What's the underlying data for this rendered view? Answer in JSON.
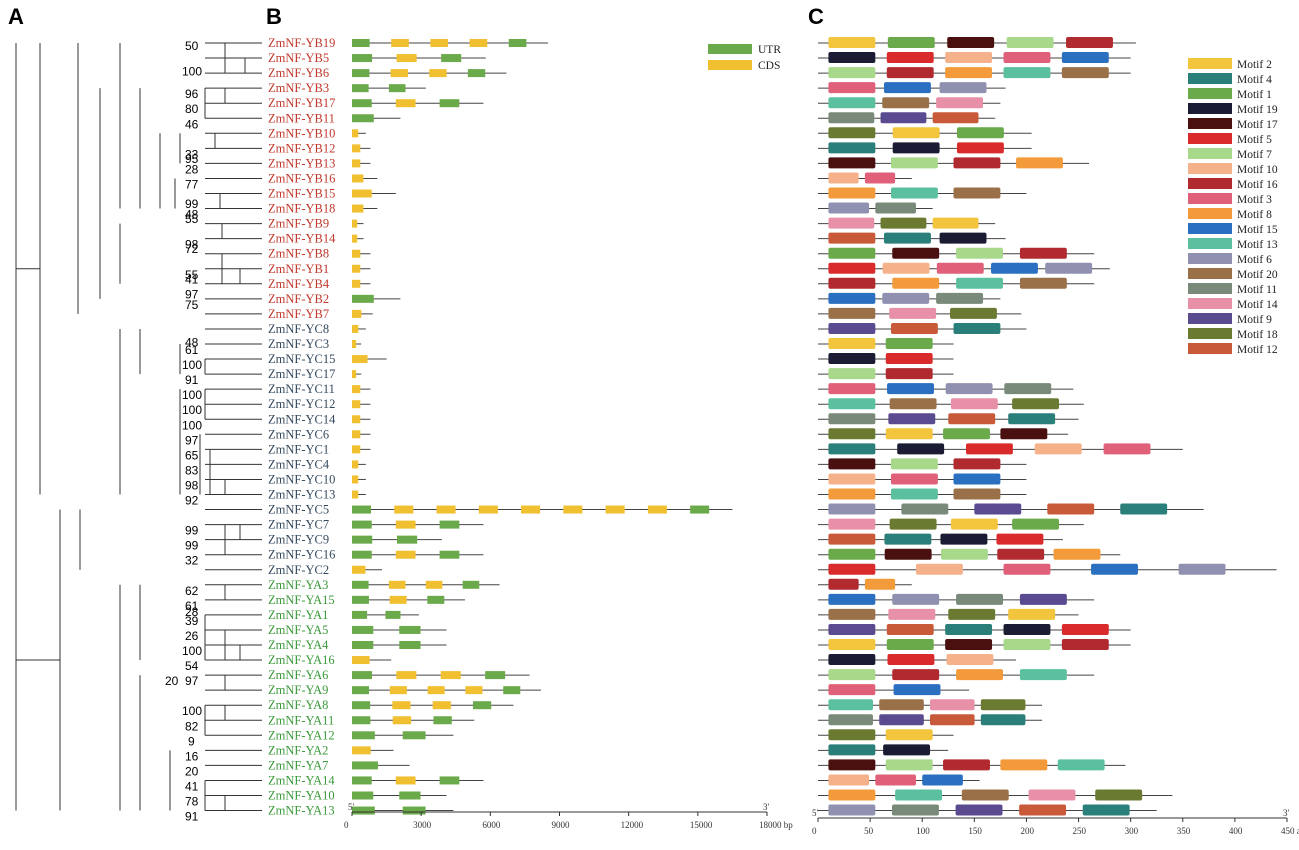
{
  "panels": {
    "a": "A",
    "b": "B",
    "c": "C"
  },
  "colors": {
    "YB": "#c0392b",
    "YC": "#34495e",
    "YA": "#3a9a3a",
    "utr": "#6aaa4a",
    "cds": "#f0c030",
    "line": "#333333"
  },
  "genes": [
    {
      "name": "ZmNF-YB19",
      "family": "YB"
    },
    {
      "name": "ZmNF-YB5",
      "family": "YB"
    },
    {
      "name": "ZmNF-YB6",
      "family": "YB"
    },
    {
      "name": "ZmNF-YB3",
      "family": "YB"
    },
    {
      "name": "ZmNF-YB17",
      "family": "YB"
    },
    {
      "name": "ZmNF-YB11",
      "family": "YB"
    },
    {
      "name": "ZmNF-YB10",
      "family": "YB"
    },
    {
      "name": "ZmNF-YB12",
      "family": "YB"
    },
    {
      "name": "ZmNF-YB13",
      "family": "YB"
    },
    {
      "name": "ZmNF-YB16",
      "family": "YB"
    },
    {
      "name": "ZmNF-YB15",
      "family": "YB"
    },
    {
      "name": "ZmNF-YB18",
      "family": "YB"
    },
    {
      "name": "ZmNF-YB9",
      "family": "YB"
    },
    {
      "name": "ZmNF-YB14",
      "family": "YB"
    },
    {
      "name": "ZmNF-YB8",
      "family": "YB"
    },
    {
      "name": "ZmNF-YB1",
      "family": "YB"
    },
    {
      "name": "ZmNF-YB4",
      "family": "YB"
    },
    {
      "name": "ZmNF-YB2",
      "family": "YB"
    },
    {
      "name": "ZmNF-YB7",
      "family": "YB"
    },
    {
      "name": "ZmNF-YC8",
      "family": "YC"
    },
    {
      "name": "ZmNF-YC3",
      "family": "YC"
    },
    {
      "name": "ZmNF-YC15",
      "family": "YC"
    },
    {
      "name": "ZmNF-YC17",
      "family": "YC"
    },
    {
      "name": "ZmNF-YC11",
      "family": "YC"
    },
    {
      "name": "ZmNF-YC12",
      "family": "YC"
    },
    {
      "name": "ZmNF-YC14",
      "family": "YC"
    },
    {
      "name": "ZmNF-YC6",
      "family": "YC"
    },
    {
      "name": "ZmNF-YC1",
      "family": "YC"
    },
    {
      "name": "ZmNF-YC4",
      "family": "YC"
    },
    {
      "name": "ZmNF-YC10",
      "family": "YC"
    },
    {
      "name": "ZmNF-YC13",
      "family": "YC"
    },
    {
      "name": "ZmNF-YC5",
      "family": "YC"
    },
    {
      "name": "ZmNF-YC7",
      "family": "YC"
    },
    {
      "name": "ZmNF-YC9",
      "family": "YC"
    },
    {
      "name": "ZmNF-YC16",
      "family": "YC"
    },
    {
      "name": "ZmNF-YC2",
      "family": "YC"
    },
    {
      "name": "ZmNF-YA3",
      "family": "YA"
    },
    {
      "name": "ZmNF-YA15",
      "family": "YA"
    },
    {
      "name": "ZmNF-YA1",
      "family": "YA"
    },
    {
      "name": "ZmNF-YA5",
      "family": "YA"
    },
    {
      "name": "ZmNF-YA4",
      "family": "YA"
    },
    {
      "name": "ZmNF-YA16",
      "family": "YA"
    },
    {
      "name": "ZmNF-YA6",
      "family": "YA"
    },
    {
      "name": "ZmNF-YA9",
      "family": "YA"
    },
    {
      "name": "ZmNF-YA8",
      "family": "YA"
    },
    {
      "name": "ZmNF-YA11",
      "family": "YA"
    },
    {
      "name": "ZmNF-YA12",
      "family": "YA"
    },
    {
      "name": "ZmNF-YA2",
      "family": "YA"
    },
    {
      "name": "ZmNF-YA7",
      "family": "YA"
    },
    {
      "name": "ZmNF-YA14",
      "family": "YA"
    },
    {
      "name": "ZmNF-YA10",
      "family": "YA"
    },
    {
      "name": "ZmNF-YA13",
      "family": "YA"
    }
  ],
  "bootstraps": [
    {
      "value": "50",
      "row": 0.2,
      "col": 0
    },
    {
      "value": "100",
      "row": 1.9,
      "col": 0
    },
    {
      "value": "96",
      "row": 3.4,
      "col": 0
    },
    {
      "value": "80",
      "row": 4.4,
      "col": 0
    },
    {
      "value": "46",
      "row": 5.4,
      "col": 0
    },
    {
      "value": "33",
      "row": 7.4,
      "col": 0
    },
    {
      "value": "95",
      "row": 7.7,
      "col": 0
    },
    {
      "value": "77",
      "row": 9.4,
      "col": 0
    },
    {
      "value": "48",
      "row": 11.4,
      "col": 0
    },
    {
      "value": "99",
      "row": 10.7,
      "col": 0
    },
    {
      "value": "55",
      "row": 11.7,
      "col": 0
    },
    {
      "value": "98",
      "row": 13.4,
      "col": 0
    },
    {
      "value": "72",
      "row": 13.7,
      "col": 0
    },
    {
      "value": "55",
      "row": 15.4,
      "col": 0
    },
    {
      "value": "41",
      "row": 15.7,
      "col": 0
    },
    {
      "value": "97",
      "row": 16.7,
      "col": 0
    },
    {
      "value": "75",
      "row": 17.4,
      "col": 0
    },
    {
      "value": "28",
      "row": 8.4,
      "col": 0
    },
    {
      "value": "48",
      "row": 19.9,
      "col": 0
    },
    {
      "value": "61",
      "row": 20.4,
      "col": 0
    },
    {
      "value": "100",
      "row": 21.4,
      "col": 0
    },
    {
      "value": "91",
      "row": 22.4,
      "col": 0
    },
    {
      "value": "100",
      "row": 23.4,
      "col": 0
    },
    {
      "value": "100",
      "row": 24.4,
      "col": 0
    },
    {
      "value": "100",
      "row": 25.4,
      "col": 0
    },
    {
      "value": "97",
      "row": 26.4,
      "col": 0
    },
    {
      "value": "65",
      "row": 27.4,
      "col": 0
    },
    {
      "value": "83",
      "row": 28.4,
      "col": 0
    },
    {
      "value": "98",
      "row": 29.4,
      "col": 0
    },
    {
      "value": "92",
      "row": 30.4,
      "col": 0
    },
    {
      "value": "99",
      "row": 32.4,
      "col": 0
    },
    {
      "value": "99",
      "row": 33.4,
      "col": 0
    },
    {
      "value": "32",
      "row": 34.4,
      "col": 0
    },
    {
      "value": "62",
      "row": 36.4,
      "col": 0
    },
    {
      "value": "61",
      "row": 37.4,
      "col": 0
    },
    {
      "value": "28",
      "row": 37.8,
      "col": 0
    },
    {
      "value": "39",
      "row": 38.4,
      "col": 0
    },
    {
      "value": "26",
      "row": 39.4,
      "col": 0
    },
    {
      "value": "100",
      "row": 40.4,
      "col": 0
    },
    {
      "value": "54",
      "row": 41.4,
      "col": 0
    },
    {
      "value": "97",
      "row": 42.4,
      "col": 0
    },
    {
      "value": "20",
      "row": 42.4,
      "col": 1
    },
    {
      "value": "100",
      "row": 44.4,
      "col": 0
    },
    {
      "value": "82",
      "row": 45.4,
      "col": 0
    },
    {
      "value": "9",
      "row": 46.4,
      "col": 0
    },
    {
      "value": "16",
      "row": 47.4,
      "col": 0
    },
    {
      "value": "20",
      "row": 48.4,
      "col": 0
    },
    {
      "value": "41",
      "row": 49.4,
      "col": 0
    },
    {
      "value": "78",
      "row": 50.4,
      "col": 0
    },
    {
      "value": "91",
      "row": 51.4,
      "col": 0
    }
  ],
  "gene_structure": {
    "axis_ticks": [
      "0",
      "3000",
      "6000",
      "9000",
      "12000",
      "15000",
      "18000 bp"
    ],
    "end_labels": [
      "5'",
      "3'"
    ],
    "max_bp": 18000,
    "legend": [
      {
        "label": "UTR",
        "key": "utr"
      },
      {
        "label": "CDS",
        "key": "cds"
      }
    ]
  },
  "motif_panel": {
    "axis_ticks": [
      "0",
      "50",
      "100",
      "150",
      "200",
      "250",
      "300",
      "350",
      "400",
      "450 aa"
    ],
    "end_labels": [
      "5'",
      "3'"
    ],
    "max_aa": 450,
    "legend": [
      {
        "label": "Motif 2",
        "color": "#f2c53d"
      },
      {
        "label": "Motif 4",
        "color": "#2a7f7a"
      },
      {
        "label": "Motif 1",
        "color": "#6aaa4a"
      },
      {
        "label": "Motif 19",
        "color": "#1b1b33"
      },
      {
        "label": "Motif 17",
        "color": "#4a1010"
      },
      {
        "label": "Motif 5",
        "color": "#d92b2b"
      },
      {
        "label": "Motif 7",
        "color": "#a8d88a"
      },
      {
        "label": "Motif 10",
        "color": "#f5b28a"
      },
      {
        "label": "Motif 16",
        "color": "#b02a30"
      },
      {
        "label": "Motif 3",
        "color": "#e0607a"
      },
      {
        "label": "Motif 8",
        "color": "#f39a3a"
      },
      {
        "label": "Motif 15",
        "color": "#2a6fc0"
      },
      {
        "label": "Motif 13",
        "color": "#5ac0a0"
      },
      {
        "label": "Motif 6",
        "color": "#9090b0"
      },
      {
        "label": "Motif 20",
        "color": "#9a7048"
      },
      {
        "label": "Motif 11",
        "color": "#7a8a7a"
      },
      {
        "label": "Motif 14",
        "color": "#e890a8"
      },
      {
        "label": "Motif 9",
        "color": "#5a4a90"
      },
      {
        "label": "Motif 18",
        "color": "#6a7a30"
      },
      {
        "label": "Motif 12",
        "color": "#c85a3a"
      }
    ]
  }
}
